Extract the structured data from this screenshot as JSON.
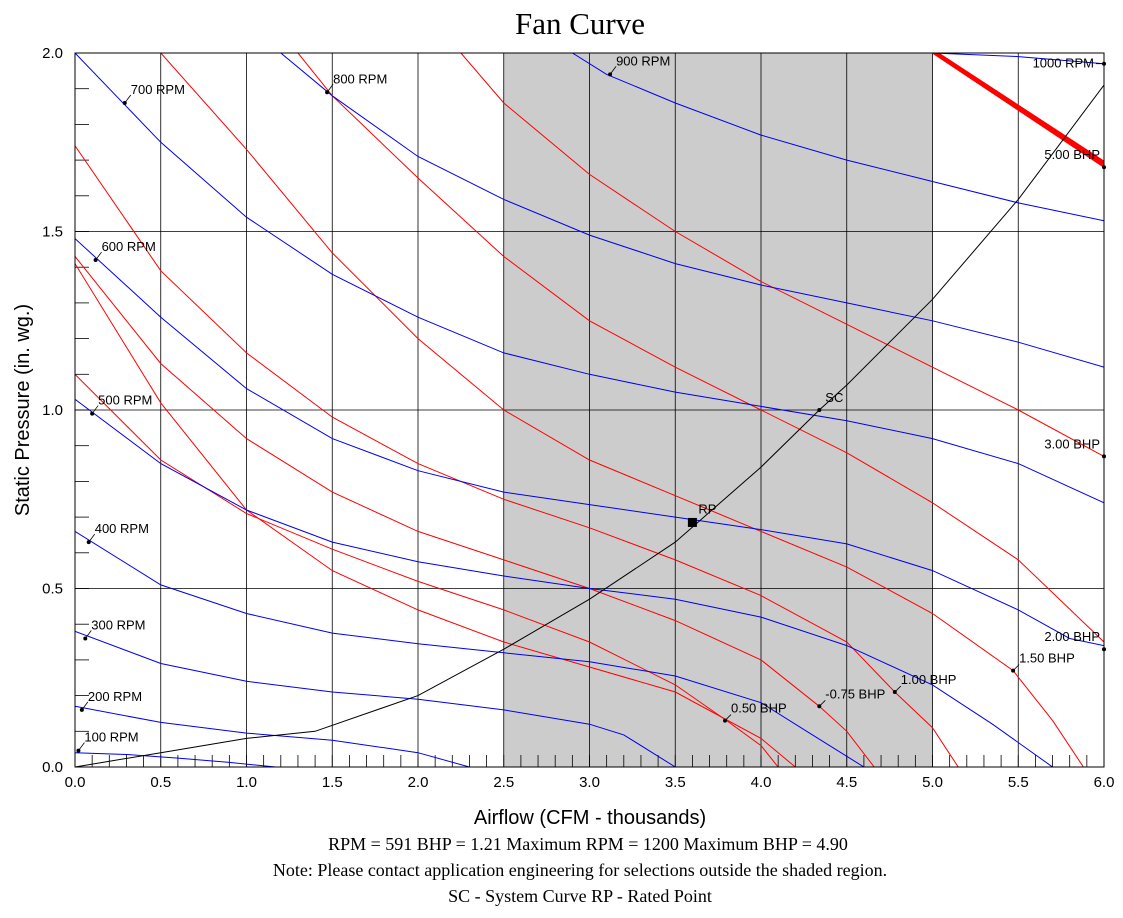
{
  "chart_data": {
    "type": "line",
    "title": "Fan Curve",
    "xlabel": "Airflow (CFM - thousands)",
    "ylabel": "Static Pressure (in. wg.)",
    "xlim": [
      0,
      6
    ],
    "ylim": [
      0,
      2
    ],
    "grid": true,
    "x_ticks": [
      "0.0",
      "0.5",
      "1.0",
      "1.5",
      "2.0",
      "2.5",
      "3.0",
      "3.5",
      "4.0",
      "4.5",
      "5.0",
      "5.5",
      "6.0"
    ],
    "y_ticks": [
      "0.0",
      "0.5",
      "1.0",
      "1.5",
      "2.0"
    ],
    "shaded_region": {
      "x": [
        2.5,
        5.0
      ]
    },
    "rpm_series": [
      {
        "name": "100 RPM",
        "x": [
          0,
          0.3,
          0.6,
          0.9,
          1.17
        ],
        "y": [
          0.04,
          0.035,
          0.025,
          0.013,
          0.0
        ],
        "label_at": [
          0.02,
          0.046
        ]
      },
      {
        "name": "200 RPM",
        "x": [
          0,
          0.5,
          1.0,
          1.5,
          2.0,
          2.3
        ],
        "y": [
          0.17,
          0.125,
          0.095,
          0.075,
          0.04,
          0.0
        ],
        "label_at": [
          0.04,
          0.16
        ]
      },
      {
        "name": "300 RPM",
        "x": [
          0,
          0.5,
          1.0,
          1.5,
          2.0,
          2.5,
          3.0,
          3.2,
          3.5
        ],
        "y": [
          0.38,
          0.29,
          0.24,
          0.21,
          0.19,
          0.16,
          0.12,
          0.09,
          0.0
        ],
        "label_at": [
          0.06,
          0.36
        ]
      },
      {
        "name": "400 RPM",
        "x": [
          0,
          0.5,
          1.0,
          1.5,
          2.0,
          2.5,
          3.0,
          3.5,
          4.0,
          4.3,
          4.6
        ],
        "y": [
          0.66,
          0.51,
          0.43,
          0.375,
          0.345,
          0.32,
          0.295,
          0.255,
          0.18,
          0.09,
          0.0
        ],
        "label_at": [
          0.08,
          0.63
        ]
      },
      {
        "name": "500 RPM",
        "x": [
          0,
          0.5,
          1.0,
          1.5,
          2.0,
          2.5,
          3.0,
          3.5,
          4.0,
          4.5,
          5.0,
          5.35,
          5.7
        ],
        "y": [
          1.03,
          0.85,
          0.72,
          0.63,
          0.575,
          0.535,
          0.5,
          0.47,
          0.42,
          0.34,
          0.23,
          0.12,
          0.0
        ],
        "label_at": [
          0.1,
          0.99
        ]
      },
      {
        "name": "600 RPM",
        "x": [
          0,
          0.5,
          1.0,
          1.5,
          2.0,
          2.5,
          3.0,
          3.5,
          4.0,
          4.5,
          5.0,
          5.5,
          5.8,
          6.0
        ],
        "y": [
          1.48,
          1.26,
          1.06,
          0.92,
          0.83,
          0.77,
          0.735,
          0.7,
          0.665,
          0.625,
          0.55,
          0.44,
          0.36,
          0.34
        ],
        "label_at": [
          0.12,
          1.42
        ]
      },
      {
        "name": "700 RPM",
        "x": [
          0,
          0.5,
          1.0,
          1.5,
          2.0,
          2.5,
          3.0,
          3.5,
          4.0,
          4.5,
          5.0,
          5.5,
          6.0
        ],
        "y": [
          2.0,
          1.75,
          1.54,
          1.38,
          1.26,
          1.16,
          1.1,
          1.05,
          1.01,
          0.97,
          0.92,
          0.85,
          0.74
        ],
        "label_at": [
          0.29,
          1.86
        ]
      },
      {
        "name": "800 RPM",
        "x": [
          1.2,
          1.5,
          2.0,
          2.5,
          3.0,
          3.5,
          4.0,
          4.5,
          5.0,
          5.5,
          6.0
        ],
        "y": [
          2.0,
          1.88,
          1.71,
          1.59,
          1.49,
          1.41,
          1.35,
          1.3,
          1.25,
          1.19,
          1.12
        ],
        "label_at": [
          1.47,
          1.89
        ]
      },
      {
        "name": "900 RPM",
        "x": [
          2.9,
          3.1,
          3.5,
          4.0,
          4.5,
          5.0,
          5.5,
          6.0
        ],
        "y": [
          2.0,
          1.94,
          1.86,
          1.77,
          1.7,
          1.64,
          1.58,
          1.53
        ],
        "label_at": [
          3.12,
          1.94
        ]
      },
      {
        "name": "1000 RPM",
        "x": [
          5.0,
          5.5,
          6.0
        ],
        "y": [
          2.0,
          1.99,
          1.97
        ],
        "label_at": [
          6.0,
          1.97
        ]
      }
    ],
    "bhp_series": [
      {
        "x": [
          0,
          0.5,
          1.0,
          1.5,
          2.0,
          2.5,
          3.0,
          3.5,
          4.0,
          4.2
        ],
        "y": [
          1.41,
          1.02,
          0.72,
          0.55,
          0.44,
          0.35,
          0.28,
          0.21,
          0.08,
          0.0
        ]
      },
      {
        "x": [
          0,
          0.5,
          1.0,
          1.5,
          2.0,
          2.5,
          3.0,
          3.5,
          3.8,
          4.0,
          4.1
        ],
        "y": [
          1.1,
          0.86,
          0.71,
          0.61,
          0.52,
          0.44,
          0.35,
          0.23,
          0.13,
          0.06,
          0.0
        ]
      },
      {
        "x": [
          0,
          0.5,
          1.0,
          1.5,
          2.0,
          2.5,
          3.0,
          3.5,
          4.0,
          4.34,
          4.5,
          4.66
        ],
        "y": [
          1.43,
          1.13,
          0.92,
          0.77,
          0.66,
          0.58,
          0.5,
          0.41,
          0.3,
          0.17,
          0.1,
          0.0
        ]
      },
      {
        "x": [
          0,
          0.5,
          1.0,
          1.5,
          2.0,
          2.5,
          3.0,
          3.5,
          4.0,
          4.5,
          4.78,
          5.0,
          5.15
        ],
        "y": [
          1.74,
          1.39,
          1.16,
          0.98,
          0.85,
          0.75,
          0.67,
          0.58,
          0.48,
          0.35,
          0.21,
          0.11,
          0.0
        ]
      },
      {
        "x": [
          0.5,
          1.0,
          1.5,
          2.0,
          2.5,
          3.0,
          3.5,
          4.0,
          4.5,
          5.0,
          5.47,
          5.7,
          5.88
        ],
        "y": [
          2.0,
          1.73,
          1.44,
          1.2,
          1.0,
          0.86,
          0.76,
          0.66,
          0.56,
          0.43,
          0.27,
          0.13,
          0.0
        ]
      },
      {
        "x": [
          1.3,
          1.5,
          2.0,
          2.5,
          3.0,
          3.5,
          4.0,
          4.5,
          5.0,
          5.5,
          6.0
        ],
        "y": [
          2.0,
          1.88,
          1.65,
          1.43,
          1.25,
          1.12,
          1.0,
          0.88,
          0.74,
          0.58,
          0.35
        ]
      },
      {
        "x": [
          2.25,
          2.5,
          3.0,
          3.5,
          4.0,
          4.5,
          5.0,
          5.5,
          6.0
        ],
        "y": [
          2.0,
          1.86,
          1.66,
          1.5,
          1.36,
          1.24,
          1.12,
          1.0,
          0.87
        ]
      }
    ],
    "bhp_labels": [
      {
        "text": "0.50 BHP",
        "x": 3.79,
        "y": 0.13
      },
      {
        "text": "-0.75 BHP",
        "x": 4.34,
        "y": 0.17
      },
      {
        "text": "1.00 BHP",
        "x": 4.78,
        "y": 0.21
      },
      {
        "text": "1.50 BHP",
        "x": 5.47,
        "y": 0.27
      },
      {
        "text": "2.00 BHP",
        "x": 6.0,
        "y": 0.33
      },
      {
        "text": "3.00 BHP",
        "x": 6.0,
        "y": 0.87
      },
      {
        "text": "5.00 BHP",
        "x": 6.0,
        "y": 1.68
      }
    ],
    "max_bhp_band": {
      "x": [
        5.0,
        6.0
      ],
      "y": [
        2.0,
        1.68
      ]
    },
    "system_curve": {
      "x": [
        0,
        0.5,
        1.0,
        1.4,
        2.0,
        2.5,
        3.0,
        3.5,
        4.0,
        4.34,
        4.5,
        5.0,
        5.5,
        6.0
      ],
      "y": [
        0.0,
        0.04,
        0.08,
        0.1,
        0.2,
        0.33,
        0.47,
        0.63,
        0.84,
        1.0,
        1.07,
        1.31,
        1.59,
        1.91
      ]
    },
    "sc_point": {
      "label": "SC",
      "x": 4.34,
      "y": 1.0
    },
    "rated_point": {
      "label": "RP",
      "x": 3.6,
      "y": 0.685
    },
    "colors": {
      "rpm": "#0000ee",
      "bhp": "#ff0000",
      "system": "#000000",
      "shade": "#cccccc",
      "grid": "#000000"
    }
  },
  "footer": {
    "line1": "RPM = 591  BHP = 1.21  Maximum RPM = 1200  Maximum BHP = 4.90",
    "line2": "Note: Please contact application engineering for selections outside the shaded region.",
    "line3": "SC - System Curve  RP - Rated Point"
  }
}
